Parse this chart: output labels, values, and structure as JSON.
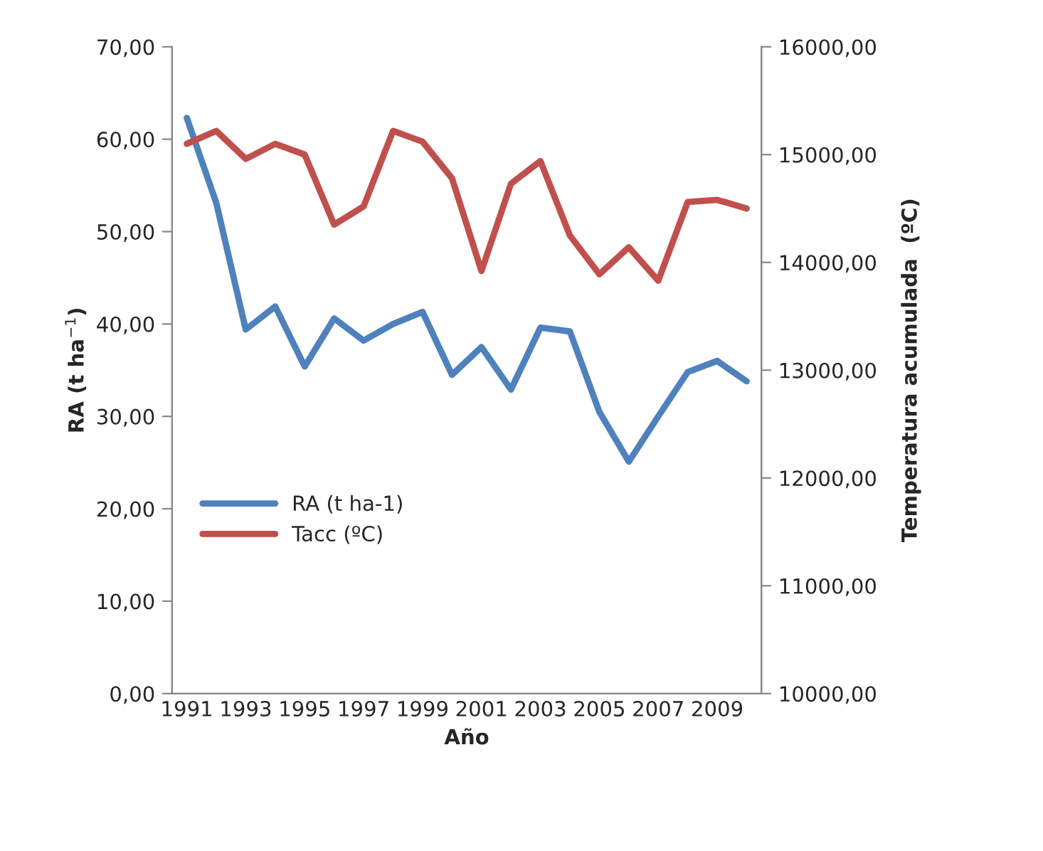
{
  "chart_data": {
    "type": "line",
    "xlabel": "Año",
    "ylabel": "RA (t ha$^{−1}$)",
    "y2label": "Temperatura acumulada  (ºC)",
    "categories": [
      "1991",
      null,
      "1993",
      null,
      "1995",
      null,
      "1997",
      null,
      "1999",
      null,
      "2001",
      null,
      "2003",
      null,
      "2005",
      null,
      "2007",
      null,
      "2009",
      null
    ],
    "series": [
      {
        "name": "RA (t ha-1)",
        "color": "#4f81bd",
        "values": [
          62.3,
          53.1,
          39.4,
          41.9,
          35.4,
          40.6,
          38.2,
          40.0,
          41.3,
          34.5,
          37.5,
          32.9,
          39.6,
          39.2,
          30.5,
          25.1,
          30.0,
          34.8,
          36.0,
          33.8
        ]
      },
      {
        "name": "Tacc (ºC)",
        "color": "#c0504d",
        "axis": "y2",
        "values": [
          15100,
          15220,
          14960,
          15100,
          15000,
          14350,
          14520,
          15220,
          15120,
          14780,
          13920,
          14730,
          14940,
          14250,
          13890,
          14140,
          13830,
          14560,
          14580,
          14500
        ]
      }
    ],
    "ylim": [
      0,
      70
    ],
    "yticks": [
      {
        "value": 0,
        "label": "0,00"
      },
      {
        "value": 10,
        "label": "10,00"
      },
      {
        "value": 20,
        "label": "20,00"
      },
      {
        "value": 30,
        "label": "30,00"
      },
      {
        "value": 40,
        "label": "40,00"
      },
      {
        "value": 50,
        "label": "50,00"
      },
      {
        "value": 60,
        "label": "60,00"
      },
      {
        "value": 70,
        "label": "70,00"
      }
    ],
    "y2lim": [
      10000,
      16000
    ],
    "y2ticks": [
      {
        "value": 10000,
        "label": "10000,00"
      },
      {
        "value": 11000,
        "label": "11000,00"
      },
      {
        "value": 12000,
        "label": "12000,00"
      },
      {
        "value": 13000,
        "label": "13000,00"
      },
      {
        "value": 14000,
        "label": "14000,00"
      },
      {
        "value": 15000,
        "label": "15000,00"
      },
      {
        "value": 16000,
        "label": "16000,00"
      }
    ],
    "legend": "bottom left",
    "grid": false,
    "marker": "none",
    "line_style": "solid"
  }
}
